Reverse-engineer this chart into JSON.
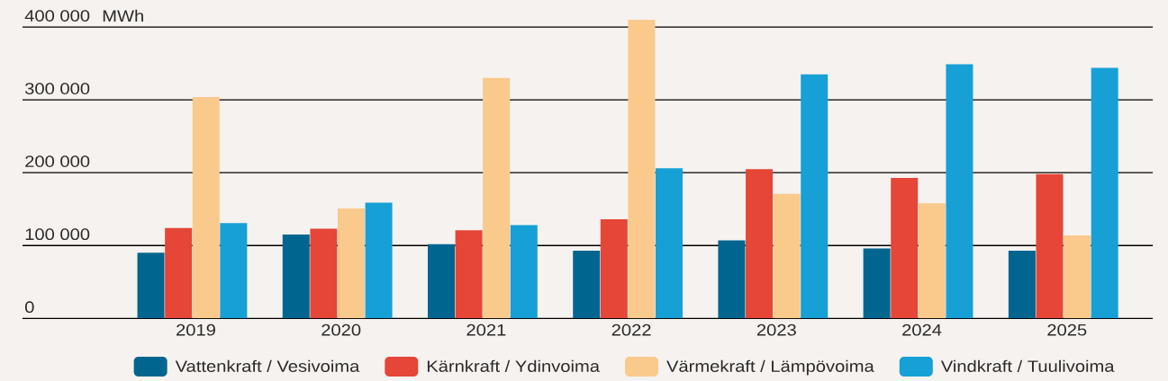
{
  "chart_data": {
    "type": "bar",
    "ylabel": "MWh",
    "categories": [
      "2019",
      "2020",
      "2021",
      "2022",
      "2023",
      "2024",
      "2025"
    ],
    "series": [
      {
        "name": "Vattenkraft / Vesivoima",
        "color": "#00668f",
        "values": [
          90000,
          115000,
          102000,
          93000,
          107000,
          96000,
          93000
        ]
      },
      {
        "name": "Kärnkraft / Ydinvoima",
        "color": "#e54637",
        "values": [
          124000,
          123000,
          121000,
          136000,
          205000,
          193000,
          198000
        ]
      },
      {
        "name": "Värmekraft / Lämpövoima",
        "color": "#fac98c",
        "values": [
          304000,
          151000,
          330000,
          410000,
          171000,
          158000,
          114000
        ]
      },
      {
        "name": "Vindkraft / Tuulivoima",
        "color": "#16a0d6",
        "values": [
          131000,
          159000,
          128000,
          206000,
          335000,
          349000,
          344000
        ]
      }
    ],
    "ylim": [
      0,
      410000
    ],
    "yticks": [
      0,
      {
        "value": 100000,
        "label": "100 000"
      },
      {
        "value": 200000,
        "label": "200 000"
      },
      {
        "value": 300000,
        "label": "300 000"
      },
      {
        "value": 400000,
        "label": "400 000"
      }
    ],
    "grid": "y",
    "legend": "bottom"
  }
}
